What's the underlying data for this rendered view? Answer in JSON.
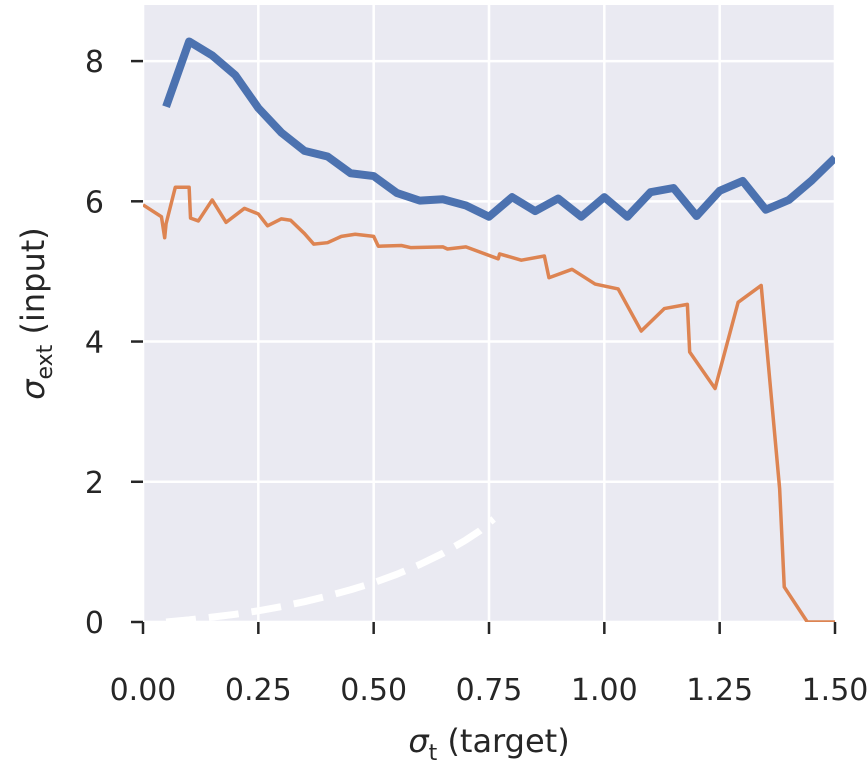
{
  "chart_data": {
    "type": "line",
    "xlabel": {
      "symbol": "σ",
      "subscript": "t",
      "text": " (target)"
    },
    "ylabel": {
      "symbol": "σ",
      "subscript": "ext",
      "text": " (input)"
    },
    "xlim": [
      0.0,
      1.5
    ],
    "ylim": [
      0.0,
      8.8
    ],
    "x_ticks": [
      0.0,
      0.25,
      0.5,
      0.75,
      1.0,
      1.25,
      1.5
    ],
    "x_tick_labels": [
      "0.00",
      "0.25",
      "0.50",
      "0.75",
      "1.00",
      "1.25",
      "1.50"
    ],
    "y_ticks": [
      0,
      2,
      4,
      6,
      8
    ],
    "y_tick_labels": [
      "0",
      "2",
      "4",
      "6",
      "8"
    ],
    "grid": true,
    "background_color": "#eaeaf2",
    "series": [
      {
        "color": "#4c72b0",
        "style": "solid-thick",
        "x": [
          0.05,
          0.1,
          0.15,
          0.2,
          0.25,
          0.3,
          0.35,
          0.4,
          0.45,
          0.5,
          0.55,
          0.6,
          0.65,
          0.7,
          0.75,
          0.8,
          0.85,
          0.9,
          0.95,
          1.0,
          1.05,
          1.1,
          1.15,
          1.2,
          1.25,
          1.3,
          1.35,
          1.4,
          1.45,
          1.5
        ],
        "y": [
          7.35,
          8.28,
          8.08,
          7.8,
          7.33,
          6.98,
          6.72,
          6.64,
          6.4,
          6.36,
          6.12,
          6.01,
          6.03,
          5.94,
          5.78,
          6.06,
          5.86,
          6.04,
          5.78,
          6.06,
          5.78,
          6.13,
          6.19,
          5.79,
          6.15,
          6.29,
          5.88,
          6.02,
          6.3,
          6.62
        ]
      },
      {
        "color": "#dd8452",
        "style": "solid-thin",
        "x": [
          0.0,
          0.04,
          0.047,
          0.05,
          0.07,
          0.1,
          0.103,
          0.12,
          0.15,
          0.18,
          0.22,
          0.25,
          0.27,
          0.3,
          0.32,
          0.35,
          0.37,
          0.4,
          0.43,
          0.46,
          0.5,
          0.51,
          0.56,
          0.58,
          0.65,
          0.66,
          0.7,
          0.77,
          0.773,
          0.82,
          0.87,
          0.88,
          0.93,
          0.98,
          1.03,
          1.08,
          1.13,
          1.18,
          1.185,
          1.24,
          1.29,
          1.34,
          1.38,
          1.39,
          1.44,
          1.5
        ],
        "y": [
          5.95,
          5.78,
          5.48,
          5.68,
          6.2,
          6.2,
          5.76,
          5.72,
          6.02,
          5.7,
          5.9,
          5.82,
          5.65,
          5.75,
          5.73,
          5.54,
          5.39,
          5.41,
          5.5,
          5.53,
          5.5,
          5.36,
          5.37,
          5.34,
          5.35,
          5.32,
          5.35,
          5.18,
          5.25,
          5.16,
          5.22,
          4.91,
          5.03,
          4.82,
          4.75,
          4.15,
          4.47,
          4.53,
          3.85,
          3.33,
          4.56,
          4.8,
          1.9,
          0.5,
          0.0,
          0.0
        ]
      },
      {
        "color": "#ffffff",
        "style": "dashed",
        "x": [
          0.05,
          0.1,
          0.15,
          0.2,
          0.25,
          0.3,
          0.35,
          0.4,
          0.45,
          0.5,
          0.55,
          0.6,
          0.65,
          0.7,
          0.73,
          0.76
        ],
        "y": [
          0.0,
          0.03,
          0.07,
          0.11,
          0.16,
          0.22,
          0.29,
          0.37,
          0.46,
          0.56,
          0.68,
          0.82,
          0.98,
          1.17,
          1.3,
          1.47
        ]
      }
    ]
  }
}
